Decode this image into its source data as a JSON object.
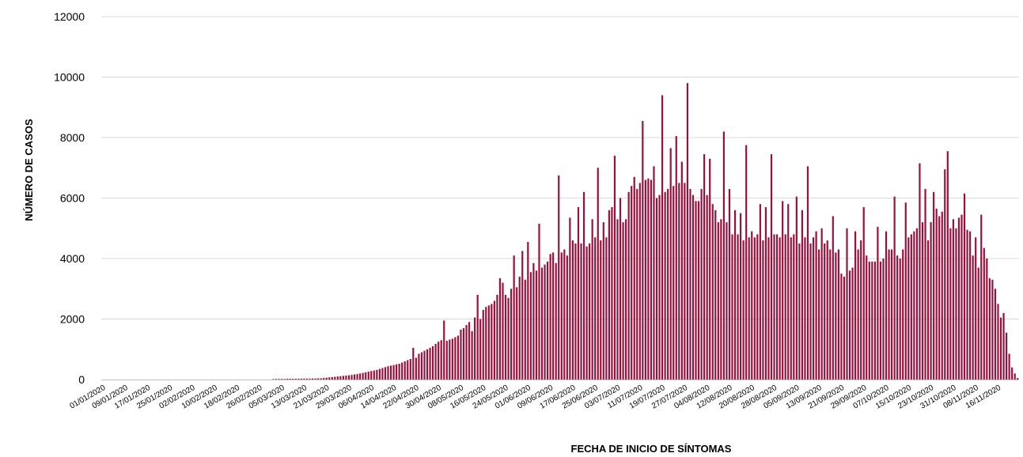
{
  "chart_data": {
    "type": "bar",
    "title": "",
    "xlabel": "FECHA DE INICIO DE SÍNTOMAS",
    "ylabel": "NÚMERO DE CASOS",
    "ylim": [
      0,
      12000
    ],
    "yticks": [
      "0",
      "2000",
      "4000",
      "6000",
      "8000",
      "10000",
      "12000"
    ],
    "grid": true,
    "bar_color": "#9b0f3a",
    "x_start": "01/01/2020",
    "x_end": "16/11/2020",
    "x_tick_labels": [
      "01/01/2020",
      "09/01/2020",
      "17/01/2020",
      "25/01/2020",
      "02/02/2020",
      "10/02/2020",
      "18/02/2020",
      "26/02/2020",
      "05/03/2020",
      "13/03/2020",
      "21/03/2020",
      "29/03/2020",
      "06/04/2020",
      "14/04/2020",
      "22/04/2020",
      "30/04/2020",
      "08/05/2020",
      "16/05/2020",
      "24/05/2020",
      "01/06/2020",
      "09/06/2020",
      "17/06/2020",
      "25/06/2020",
      "03/07/2020",
      "11/07/2020",
      "19/07/2020",
      "27/07/2020",
      "04/08/2020",
      "12/08/2020",
      "20/08/2020",
      "28/08/2020",
      "05/09/2020",
      "13/09/2020",
      "21/09/2020",
      "29/09/2020",
      "07/10/2020",
      "15/10/2020",
      "23/10/2020",
      "31/10/2020",
      "08/11/2020",
      "16/11/2020"
    ],
    "values": [
      0,
      0,
      0,
      0,
      0,
      0,
      0,
      0,
      0,
      0,
      0,
      0,
      0,
      0,
      0,
      0,
      0,
      0,
      0,
      0,
      0,
      0,
      0,
      0,
      0,
      0,
      0,
      0,
      0,
      0,
      0,
      0,
      0,
      0,
      0,
      0,
      0,
      0,
      0,
      0,
      0,
      0,
      0,
      0,
      0,
      0,
      0,
      0,
      0,
      0,
      0,
      0,
      0,
      0,
      0,
      0,
      0,
      0,
      0,
      0,
      0,
      15,
      20,
      20,
      20,
      20,
      25,
      25,
      25,
      25,
      25,
      30,
      30,
      30,
      30,
      35,
      35,
      40,
      40,
      50,
      60,
      70,
      80,
      90,
      100,
      110,
      120,
      130,
      140,
      150,
      170,
      180,
      200,
      220,
      240,
      260,
      280,
      300,
      320,
      350,
      380,
      410,
      440,
      460,
      480,
      500,
      520,
      560,
      600,
      640,
      680,
      1050,
      720,
      850,
      900,
      950,
      1000,
      1050,
      1100,
      1180,
      1250,
      1300,
      1950,
      1280,
      1320,
      1350,
      1400,
      1450,
      1650,
      1700,
      1800,
      1900,
      1600,
      2050,
      2800,
      2000,
      2300,
      2400,
      2450,
      2500,
      2600,
      2800,
      3350,
      3200,
      2800,
      2700,
      3000,
      4100,
      3050,
      3400,
      4250,
      3300,
      4550,
      3550,
      3850,
      3600,
      5150,
      3700,
      3800,
      3900,
      4150,
      4200,
      3850,
      6750,
      4200,
      4300,
      4100,
      5350,
      4600,
      4500,
      5700,
      4500,
      6200,
      4400,
      4500,
      5300,
      4700,
      7000,
      4600,
      5200,
      4700,
      5600,
      5700,
      7400,
      5300,
      6000,
      5200,
      5300,
      6200,
      6400,
      6700,
      6300,
      6500,
      8550,
      6600,
      6650,
      6600,
      7050,
      6000,
      6100,
      9400,
      6200,
      6300,
      7650,
      6400,
      8050,
      6500,
      7200,
      6500,
      9800,
      6300,
      6100,
      5900,
      5900,
      6300,
      7450,
      6100,
      7300,
      5800,
      5600,
      5200,
      5300,
      8200,
      5200,
      6300,
      4800,
      5600,
      4800,
      5500,
      4600,
      7750,
      4700,
      4900,
      4700,
      4800,
      5800,
      4600,
      5700,
      4700,
      7450,
      4800,
      4800,
      4700,
      5900,
      4800,
      5800,
      4700,
      4800,
      6050,
      4500,
      5600,
      4700,
      7050,
      4500,
      4700,
      4900,
      4300,
      5000,
      4500,
      4600,
      4300,
      5400,
      4200,
      4300,
      3500,
      3400,
      5000,
      3600,
      3700,
      4900,
      4300,
      4600,
      5700,
      4100,
      3900,
      3900,
      3900,
      5050,
      3900,
      4000,
      4900,
      4300,
      4300,
      6050,
      4100,
      4000,
      4300,
      5850,
      4700,
      4800,
      4900,
      5000,
      7150,
      5200,
      6300,
      4600,
      5200,
      6200,
      5650,
      5400,
      5550,
      6950,
      7550,
      5000,
      5300,
      5000,
      5350,
      5450,
      6150,
      4950,
      4900,
      4100,
      4700,
      3700,
      5450,
      4350,
      4000,
      3350,
      3300,
      3000,
      2500,
      2050,
      2200,
      1550,
      850,
      400,
      200,
      50
    ]
  }
}
